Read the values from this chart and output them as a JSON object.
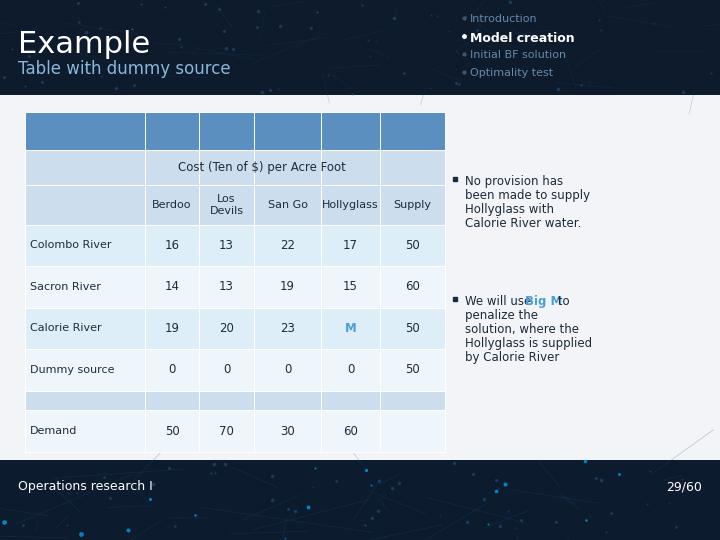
{
  "title": "Example",
  "subtitle": "Table with dummy source",
  "nav_items": [
    "Introduction",
    "Model creation",
    "Initial BF solution",
    "Optimality test"
  ],
  "nav_bold": 1,
  "col_headers": [
    "Berdoo",
    "Los\nDevils",
    "San Go",
    "Hollyglass",
    "Supply"
  ],
  "cost_header": "Cost (Ten of $) per Acre Foot",
  "row_labels": [
    "Colombo River",
    "Sacron River",
    "Calorie River",
    "Dummy source",
    "",
    "Demand"
  ],
  "table_data": [
    [
      "16",
      "13",
      "22",
      "17",
      "50"
    ],
    [
      "14",
      "13",
      "19",
      "15",
      "60"
    ],
    [
      "19",
      "20",
      "23",
      "M",
      "50"
    ],
    [
      "0",
      "0",
      "0",
      "0",
      "50"
    ],
    [
      "",
      "",
      "",
      "",
      ""
    ],
    [
      "50",
      "70",
      "30",
      "60",
      ""
    ]
  ],
  "special_cell_row": 2,
  "special_cell_col": 3,
  "special_color": "#4a9fd4",
  "row_colors": [
    "#5b8fc0",
    "#ccdded",
    "#ccdded",
    "#ddeef8",
    "#eef6fb",
    "#ddeef8",
    "#eef6fb",
    "#ccdded",
    "#eef6fb"
  ],
  "header_dark": "#0d1b2e",
  "body_bg": "#ffffff",
  "text_dark": "#1c2d3e",
  "bullet1_lines": [
    "No provision has",
    "been made to supply",
    "Hollyglass with",
    "Calorie River water."
  ],
  "bullet2_pre": "We will use ",
  "bullet2_bold": "Big M",
  "bullet2_post": " to",
  "bullet2_rest": [
    "penalize the",
    "solution, where the",
    "Hollyglass is supplied",
    "by Calorie River"
  ],
  "footer_left": "Operations research I",
  "footer_right": "29/60"
}
